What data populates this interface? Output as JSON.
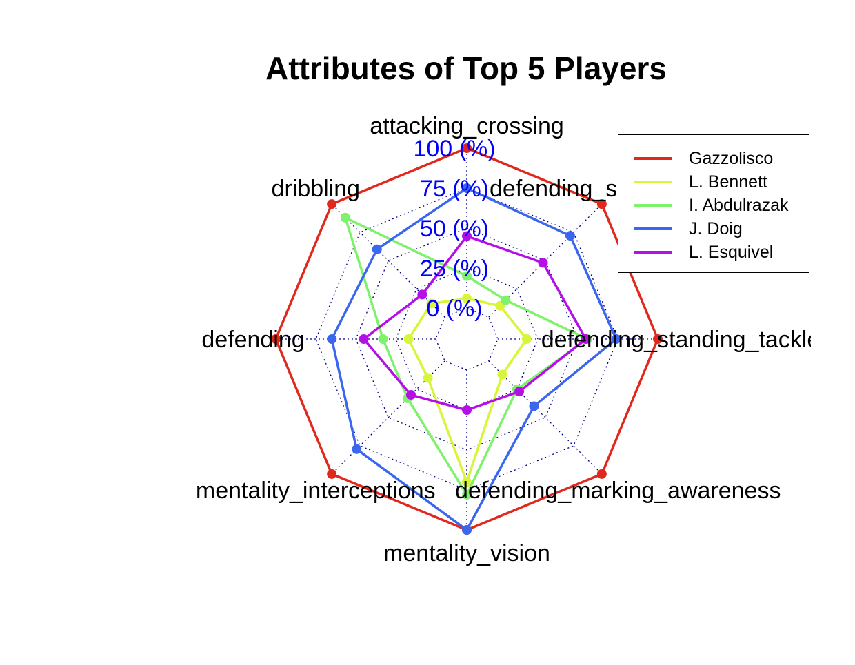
{
  "chart_data": {
    "type": "radar",
    "title": "Attributes of Top 5 Players",
    "axes": [
      "attacking_crossing",
      "defending_sliding_tackle",
      "defending_standing_tackle",
      "defending_marking_awareness",
      "mentality_vision",
      "mentality_interceptions",
      "defending",
      "dribbling"
    ],
    "scale_labels": [
      "0 (%)",
      "25 (%)",
      "50 (%)",
      "75 (%)",
      "100 (%)"
    ],
    "scale_label_color": "#0000ff",
    "grid_color": "#00008b",
    "range": [
      0,
      100
    ],
    "legend_position": "top-right",
    "series": [
      {
        "name": "Gazzolisco",
        "color": "#e0281c",
        "values": [
          100,
          100,
          100,
          100,
          100,
          100,
          100,
          100
        ]
      },
      {
        "name": "L. Bennett",
        "color": "#d8f53a",
        "values": [
          6,
          10,
          18,
          12,
          70,
          15,
          17,
          12
        ]
      },
      {
        "name": "I. Abdulrazak",
        "color": "#7ef26a",
        "values": [
          20,
          15,
          56,
          25,
          78,
          33,
          33,
          88
        ]
      },
      {
        "name": "J. Doig",
        "color": "#3a66f0",
        "values": [
          75,
          72,
          74,
          40,
          100,
          78,
          65,
          60
        ]
      },
      {
        "name": "L. Esquivel",
        "color": "#b50fe8",
        "values": [
          45,
          48,
          55,
          27,
          25,
          30,
          45,
          20
        ]
      }
    ]
  }
}
